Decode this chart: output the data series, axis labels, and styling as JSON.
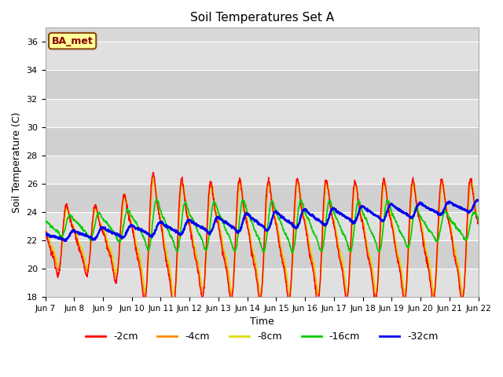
{
  "title": "Soil Temperatures Set A",
  "xlabel": "Time",
  "ylabel": "Soil Temperature (C)",
  "ylim": [
    18,
    37
  ],
  "yticks": [
    18,
    20,
    22,
    24,
    26,
    28,
    30,
    32,
    34,
    36
  ],
  "legend_labels": [
    "-2cm",
    "-4cm",
    "-8cm",
    "-16cm",
    "-32cm"
  ],
  "legend_colors": [
    "#ff0000",
    "#ff8800",
    "#dddd00",
    "#00cc00",
    "#0000ee"
  ],
  "annotation_text": "BA_met",
  "annotation_color": "#8B0000",
  "annotation_bg": "#ffff99",
  "n_days": 15,
  "start_day": 7,
  "hours_per_day": 24
}
